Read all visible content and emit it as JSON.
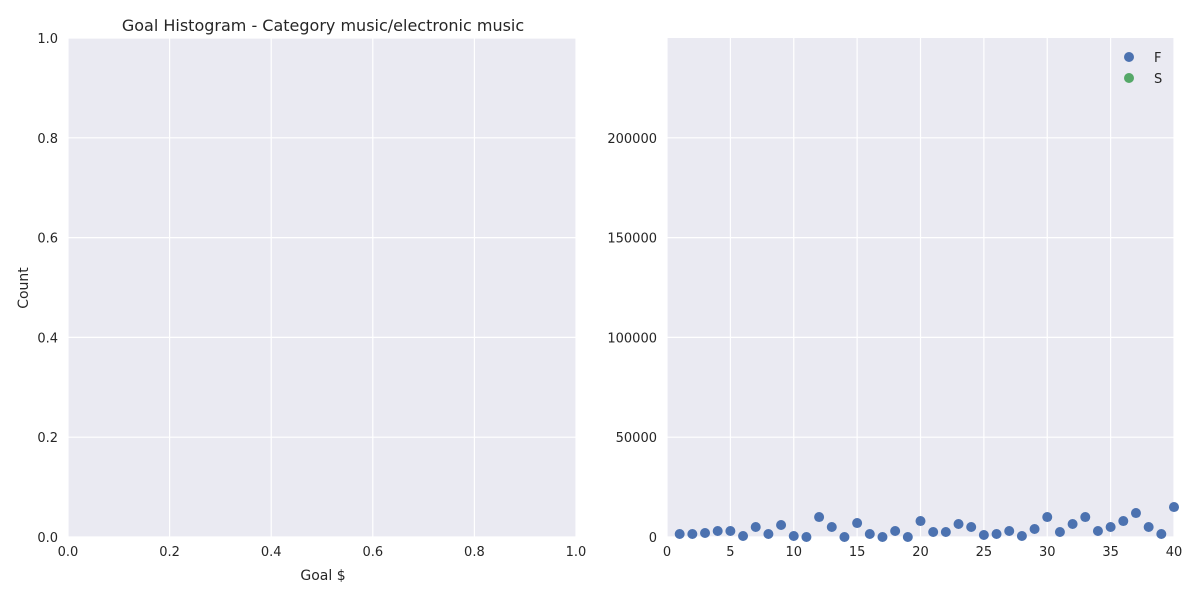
{
  "chart_data": [
    {
      "type": "bar",
      "title": "Goal Histogram - Category music/electronic music",
      "xlabel": "Goal $",
      "ylabel": "Count",
      "xlim": [
        0.0,
        1.0
      ],
      "ylim": [
        0.0,
        1.0
      ],
      "xticks": [
        "0.0",
        "0.2",
        "0.4",
        "0.6",
        "0.8",
        "1.0"
      ],
      "yticks": [
        "0.0",
        "0.2",
        "0.4",
        "0.6",
        "0.8",
        "1.0"
      ],
      "values": [],
      "grid": true
    },
    {
      "type": "scatter",
      "title": "",
      "xlabel": "",
      "ylabel": "",
      "xlim": [
        0,
        40
      ],
      "ylim": [
        0,
        250000
      ],
      "xticks": [
        "0",
        "5",
        "10",
        "15",
        "20",
        "25",
        "30",
        "35",
        "40"
      ],
      "yticks": [
        "0",
        "50000",
        "100000",
        "150000",
        "200000"
      ],
      "legend_position": "top-right",
      "grid": true,
      "series": [
        {
          "name": "F",
          "color": "#4c72b0",
          "x": [
            1,
            2,
            3,
            4,
            5,
            6,
            7,
            8,
            9,
            10,
            11,
            12,
            13,
            14,
            15,
            16,
            17,
            18,
            19,
            20,
            21,
            22,
            23,
            24,
            25,
            26,
            27,
            28,
            29,
            30,
            31,
            32,
            33,
            34,
            35,
            36,
            37,
            38,
            39,
            40
          ],
          "y": [
            1500,
            1500,
            2000,
            3000,
            3000,
            500,
            5000,
            1500,
            6000,
            500,
            0,
            10000,
            5000,
            0,
            7000,
            1500,
            0,
            3000,
            0,
            8000,
            2500,
            2500,
            6500,
            5000,
            1000,
            1500,
            3000,
            500,
            4000,
            10000,
            2500,
            6500,
            10000,
            3000,
            5000,
            8000,
            12000,
            5000,
            1500,
            15000
          ]
        },
        {
          "name": "S",
          "color": "#55a868",
          "x": [],
          "y": []
        }
      ]
    }
  ]
}
